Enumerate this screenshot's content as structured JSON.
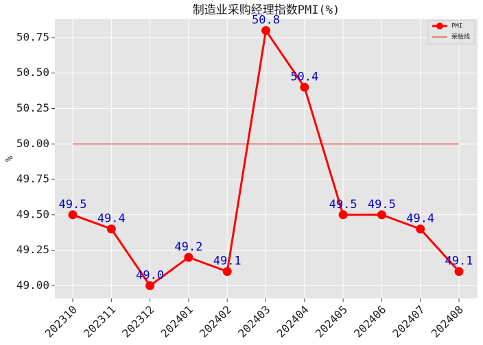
{
  "chart_data": {
    "type": "line",
    "title": "制造业采购经理指数PMI(%)",
    "y_label": "%",
    "categories": [
      "202310",
      "202311",
      "202312",
      "202401",
      "202402",
      "202403",
      "202404",
      "202405",
      "202406",
      "202407",
      "202408"
    ],
    "series": [
      {
        "name": "PMI",
        "color": "#ff0000",
        "values": [
          49.5,
          49.4,
          49.0,
          49.2,
          49.1,
          50.8,
          50.4,
          49.5,
          49.5,
          49.4,
          49.1
        ],
        "value_labels": [
          "49.5",
          "49.4",
          "49.0",
          "49.2",
          "49.1",
          "50.8",
          "50.4",
          "49.5",
          "49.5",
          "49.4",
          "49.1"
        ],
        "label_color": "#0000cc"
      }
    ],
    "reference_line": {
      "name": "荣枯线",
      "value": 50,
      "color": "#e8452c"
    },
    "ylim": [
      48.91,
      50.88
    ],
    "yticks": [
      {
        "value": 49,
        "label": "49.00"
      },
      {
        "value": 49.25,
        "label": "49.25"
      },
      {
        "value": 49.5,
        "label": "49.50"
      },
      {
        "value": 49.75,
        "label": "49.75"
      },
      {
        "value": 50,
        "label": "50.00"
      },
      {
        "value": 50.25,
        "label": "50.25"
      },
      {
        "value": 50.5,
        "label": "50.50"
      },
      {
        "value": 50.75,
        "label": "50.75"
      }
    ],
    "grid": true,
    "legend": "upper right"
  }
}
